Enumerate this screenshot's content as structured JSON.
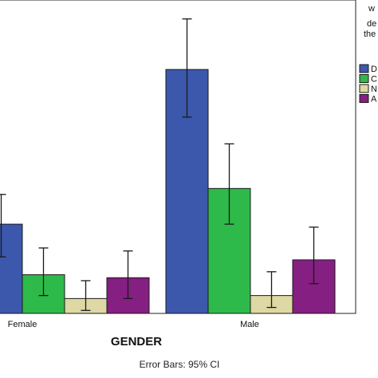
{
  "chart_data": {
    "type": "bar",
    "xlabel": "GENDER",
    "categories": [
      "Female",
      "Male"
    ],
    "legend_title_lines": [
      "w",
      "de",
      "the"
    ],
    "legend_placement": "right",
    "footnote": "Error Bars: 95% CI",
    "ylim": [
      0,
      100
    ],
    "grid": false,
    "series": [
      {
        "name": "D",
        "color": "#3c58ac",
        "values": [
          30,
          82
        ],
        "ci_low": [
          19,
          66
        ],
        "ci_high": [
          40,
          99
        ]
      },
      {
        "name": "C",
        "color": "#2dba4a",
        "values": [
          13,
          42
        ],
        "ci_low": [
          6,
          30
        ],
        "ci_high": [
          22,
          57
        ]
      },
      {
        "name": "N",
        "color": "#ddd8a4",
        "values": [
          5,
          6
        ],
        "ci_low": [
          1,
          2
        ],
        "ci_high": [
          11,
          14
        ]
      },
      {
        "name": "A",
        "color": "#851f82",
        "values": [
          12,
          18
        ],
        "ci_low": [
          5,
          10
        ],
        "ci_high": [
          21,
          29
        ]
      }
    ]
  }
}
